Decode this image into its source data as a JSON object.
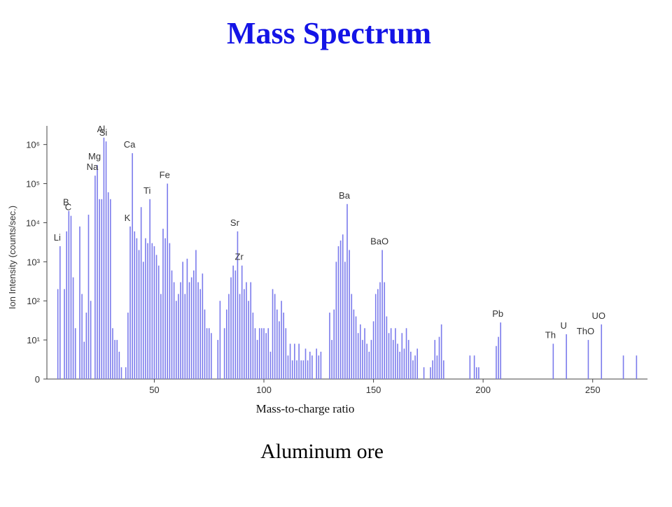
{
  "page_title": "Mass Spectrum",
  "caption": "Aluminum ore",
  "chart_data": {
    "type": "bar",
    "xlabel": "Mass-to-charge ratio",
    "ylabel": "Ion Intensity (counts/sec.)",
    "color": "#7b7bec",
    "log_y": true,
    "xlim": [
      1,
      275
    ],
    "xticks": [
      50,
      100,
      150,
      200,
      250
    ],
    "ylim": [
      1,
      3000000
    ],
    "yticks": [
      {
        "value": 1,
        "label": "0"
      },
      {
        "value": 10,
        "label": "10¹"
      },
      {
        "value": 100,
        "label": "10²"
      },
      {
        "value": 1000,
        "label": "10³"
      },
      {
        "value": 10000,
        "label": "10⁴"
      },
      {
        "value": 100000,
        "label": "10⁵"
      },
      {
        "value": 1000000,
        "label": "10⁶"
      }
    ],
    "x": [
      6,
      7,
      9,
      10,
      11,
      12,
      13,
      14,
      16,
      17,
      18,
      19,
      20,
      21,
      23,
      24,
      25,
      26,
      27,
      28,
      29,
      30,
      31,
      32,
      33,
      34,
      35,
      37,
      38,
      39,
      40,
      41,
      42,
      43,
      44,
      45,
      46,
      47,
      48,
      49,
      50,
      51,
      52,
      53,
      54,
      55,
      56,
      57,
      58,
      59,
      60,
      61,
      62,
      63,
      64,
      65,
      66,
      67,
      68,
      69,
      70,
      71,
      72,
      73,
      74,
      75,
      76,
      79,
      80,
      82,
      83,
      84,
      85,
      86,
      87,
      88,
      89,
      90,
      91,
      92,
      93,
      94,
      95,
      96,
      97,
      98,
      99,
      100,
      101,
      102,
      103,
      104,
      105,
      106,
      107,
      108,
      109,
      110,
      111,
      112,
      113,
      114,
      115,
      116,
      117,
      118,
      119,
      120,
      121,
      122,
      124,
      125,
      126,
      130,
      131,
      132,
      133,
      134,
      135,
      136,
      137,
      138,
      139,
      140,
      141,
      142,
      143,
      144,
      145,
      146,
      147,
      148,
      149,
      150,
      151,
      152,
      153,
      154,
      155,
      156,
      157,
      158,
      159,
      160,
      161,
      162,
      163,
      164,
      165,
      166,
      167,
      168,
      169,
      170,
      173,
      176,
      177,
      178,
      179,
      180,
      181,
      182,
      194,
      196,
      197,
      198,
      206,
      207,
      208,
      232,
      238,
      248,
      254,
      264,
      270
    ],
    "values": [
      200,
      2500,
      200,
      6000,
      20000,
      15000,
      400,
      20,
      8000,
      150,
      9,
      50,
      16000,
      100,
      160000,
      300000,
      40000,
      40000,
      1500000,
      1200000,
      60000,
      40000,
      20,
      10,
      10,
      5,
      2,
      2,
      50,
      8000,
      600000,
      6000,
      4000,
      2000,
      25000,
      1000,
      4000,
      3000,
      40000,
      3000,
      2500,
      1500,
      800,
      150,
      7000,
      4000,
      100000,
      3000,
      600,
      300,
      100,
      150,
      300,
      1000,
      150,
      1200,
      300,
      400,
      600,
      2000,
      300,
      200,
      500,
      60,
      20,
      20,
      15,
      10,
      100,
      20,
      60,
      150,
      400,
      800,
      600,
      6000,
      150,
      800,
      200,
      300,
      100,
      300,
      50,
      20,
      10,
      20,
      20,
      20,
      15,
      20,
      5,
      200,
      150,
      60,
      30,
      100,
      50,
      20,
      4,
      8,
      3,
      8,
      3,
      8,
      3,
      3,
      6,
      3,
      5,
      4,
      6,
      4,
      5,
      50,
      10,
      60,
      1000,
      2500,
      3500,
      5000,
      1000,
      30000,
      2000,
      150,
      60,
      40,
      15,
      25,
      10,
      20,
      8,
      5,
      10,
      30,
      150,
      200,
      300,
      2000,
      300,
      40,
      15,
      20,
      10,
      20,
      8,
      5,
      15,
      6,
      20,
      10,
      5,
      3,
      4,
      6,
      2,
      2,
      3,
      10,
      4,
      12,
      25,
      3,
      4,
      4,
      2,
      2,
      7,
      12,
      28,
      8,
      14,
      10,
      25,
      4,
      4
    ],
    "annotations": [
      {
        "text": "Li",
        "x": 7
      },
      {
        "text": "B",
        "x": 11
      },
      {
        "text": "C",
        "x": 12
      },
      {
        "text": "Na",
        "x": 23
      },
      {
        "text": "Mg",
        "x": 24
      },
      {
        "text": "Al",
        "x": 27
      },
      {
        "text": "Si",
        "x": 28
      },
      {
        "text": "K",
        "x": 39
      },
      {
        "text": "Ca",
        "x": 40
      },
      {
        "text": "Ti",
        "x": 48
      },
      {
        "text": "Fe",
        "x": 56
      },
      {
        "text": "Sr",
        "x": 88
      },
      {
        "text": "Zr",
        "x": 90
      },
      {
        "text": "Ba",
        "x": 138
      },
      {
        "text": "BaO",
        "x": 154
      },
      {
        "text": "Pb",
        "x": 208
      },
      {
        "text": "Th",
        "x": 232
      },
      {
        "text": "U",
        "x": 238
      },
      {
        "text": "ThO",
        "x": 248
      },
      {
        "text": "UO",
        "x": 254
      }
    ]
  }
}
